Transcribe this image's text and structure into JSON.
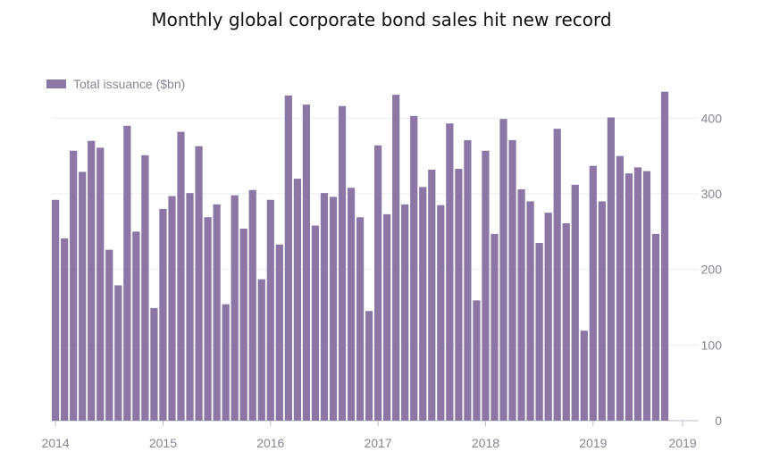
{
  "title": "Monthly global corporate bond sales hit new record",
  "colors": {
    "bar": "#8b76a6",
    "grid": "#ececf0",
    "axis": "#bdbdc6",
    "text": "#8a8494"
  },
  "chart_data": {
    "type": "bar",
    "legend": {
      "label": "Total issuance ($bn)",
      "placement": "top-left"
    },
    "grid": true,
    "ylim": [
      0,
      450
    ],
    "yticks": [
      0,
      100,
      200,
      300,
      400
    ],
    "ytick_labels": [
      "0",
      "100",
      "200",
      "300",
      "400"
    ],
    "y_axis_side": "right",
    "xticks": [
      "2014",
      "2015",
      "2016",
      "2017",
      "2018",
      "2019",
      "2019"
    ],
    "categories": [
      "2014-01",
      "2014-02",
      "2014-03",
      "2014-04",
      "2014-05",
      "2014-06",
      "2014-07",
      "2014-08",
      "2014-09",
      "2014-10",
      "2014-11",
      "2014-12",
      "2015-01",
      "2015-02",
      "2015-03",
      "2015-04",
      "2015-05",
      "2015-06",
      "2015-07",
      "2015-08",
      "2015-09",
      "2015-10",
      "2015-11",
      "2015-12",
      "2016-01",
      "2016-02",
      "2016-03",
      "2016-04",
      "2016-05",
      "2016-06",
      "2016-07",
      "2016-08",
      "2016-09",
      "2016-10",
      "2016-11",
      "2016-12",
      "2017-01",
      "2017-02",
      "2017-03",
      "2017-04",
      "2017-05",
      "2017-06",
      "2017-07",
      "2017-08",
      "2017-09",
      "2017-10",
      "2017-11",
      "2017-12",
      "2018-01",
      "2018-02",
      "2018-03",
      "2018-04",
      "2018-05",
      "2018-06",
      "2018-07",
      "2018-08",
      "2018-09",
      "2018-10",
      "2018-11",
      "2018-12",
      "2019-01",
      "2019-02",
      "2019-03",
      "2019-04",
      "2019-05",
      "2019-06",
      "2019-07",
      "2019-08",
      "2019-09",
      "2019-10",
      "2019-11"
    ],
    "series": [
      {
        "name": "Total issuance ($bn)",
        "values": [
          292,
          241,
          357,
          329,
          370,
          361,
          226,
          179,
          390,
          250,
          351,
          149,
          280,
          297,
          382,
          301,
          363,
          269,
          286,
          154,
          298,
          254,
          305,
          187,
          292,
          233,
          430,
          320,
          418,
          258,
          301,
          296,
          416,
          308,
          269,
          145,
          364,
          273,
          431,
          286,
          403,
          309,
          332,
          285,
          393,
          333,
          371,
          159,
          357,
          247,
          399,
          371,
          306,
          290,
          235,
          275,
          386,
          261,
          312,
          119,
          337,
          290,
          401,
          350,
          327,
          335,
          330,
          247,
          435,
          0,
          0
        ]
      }
    ]
  }
}
